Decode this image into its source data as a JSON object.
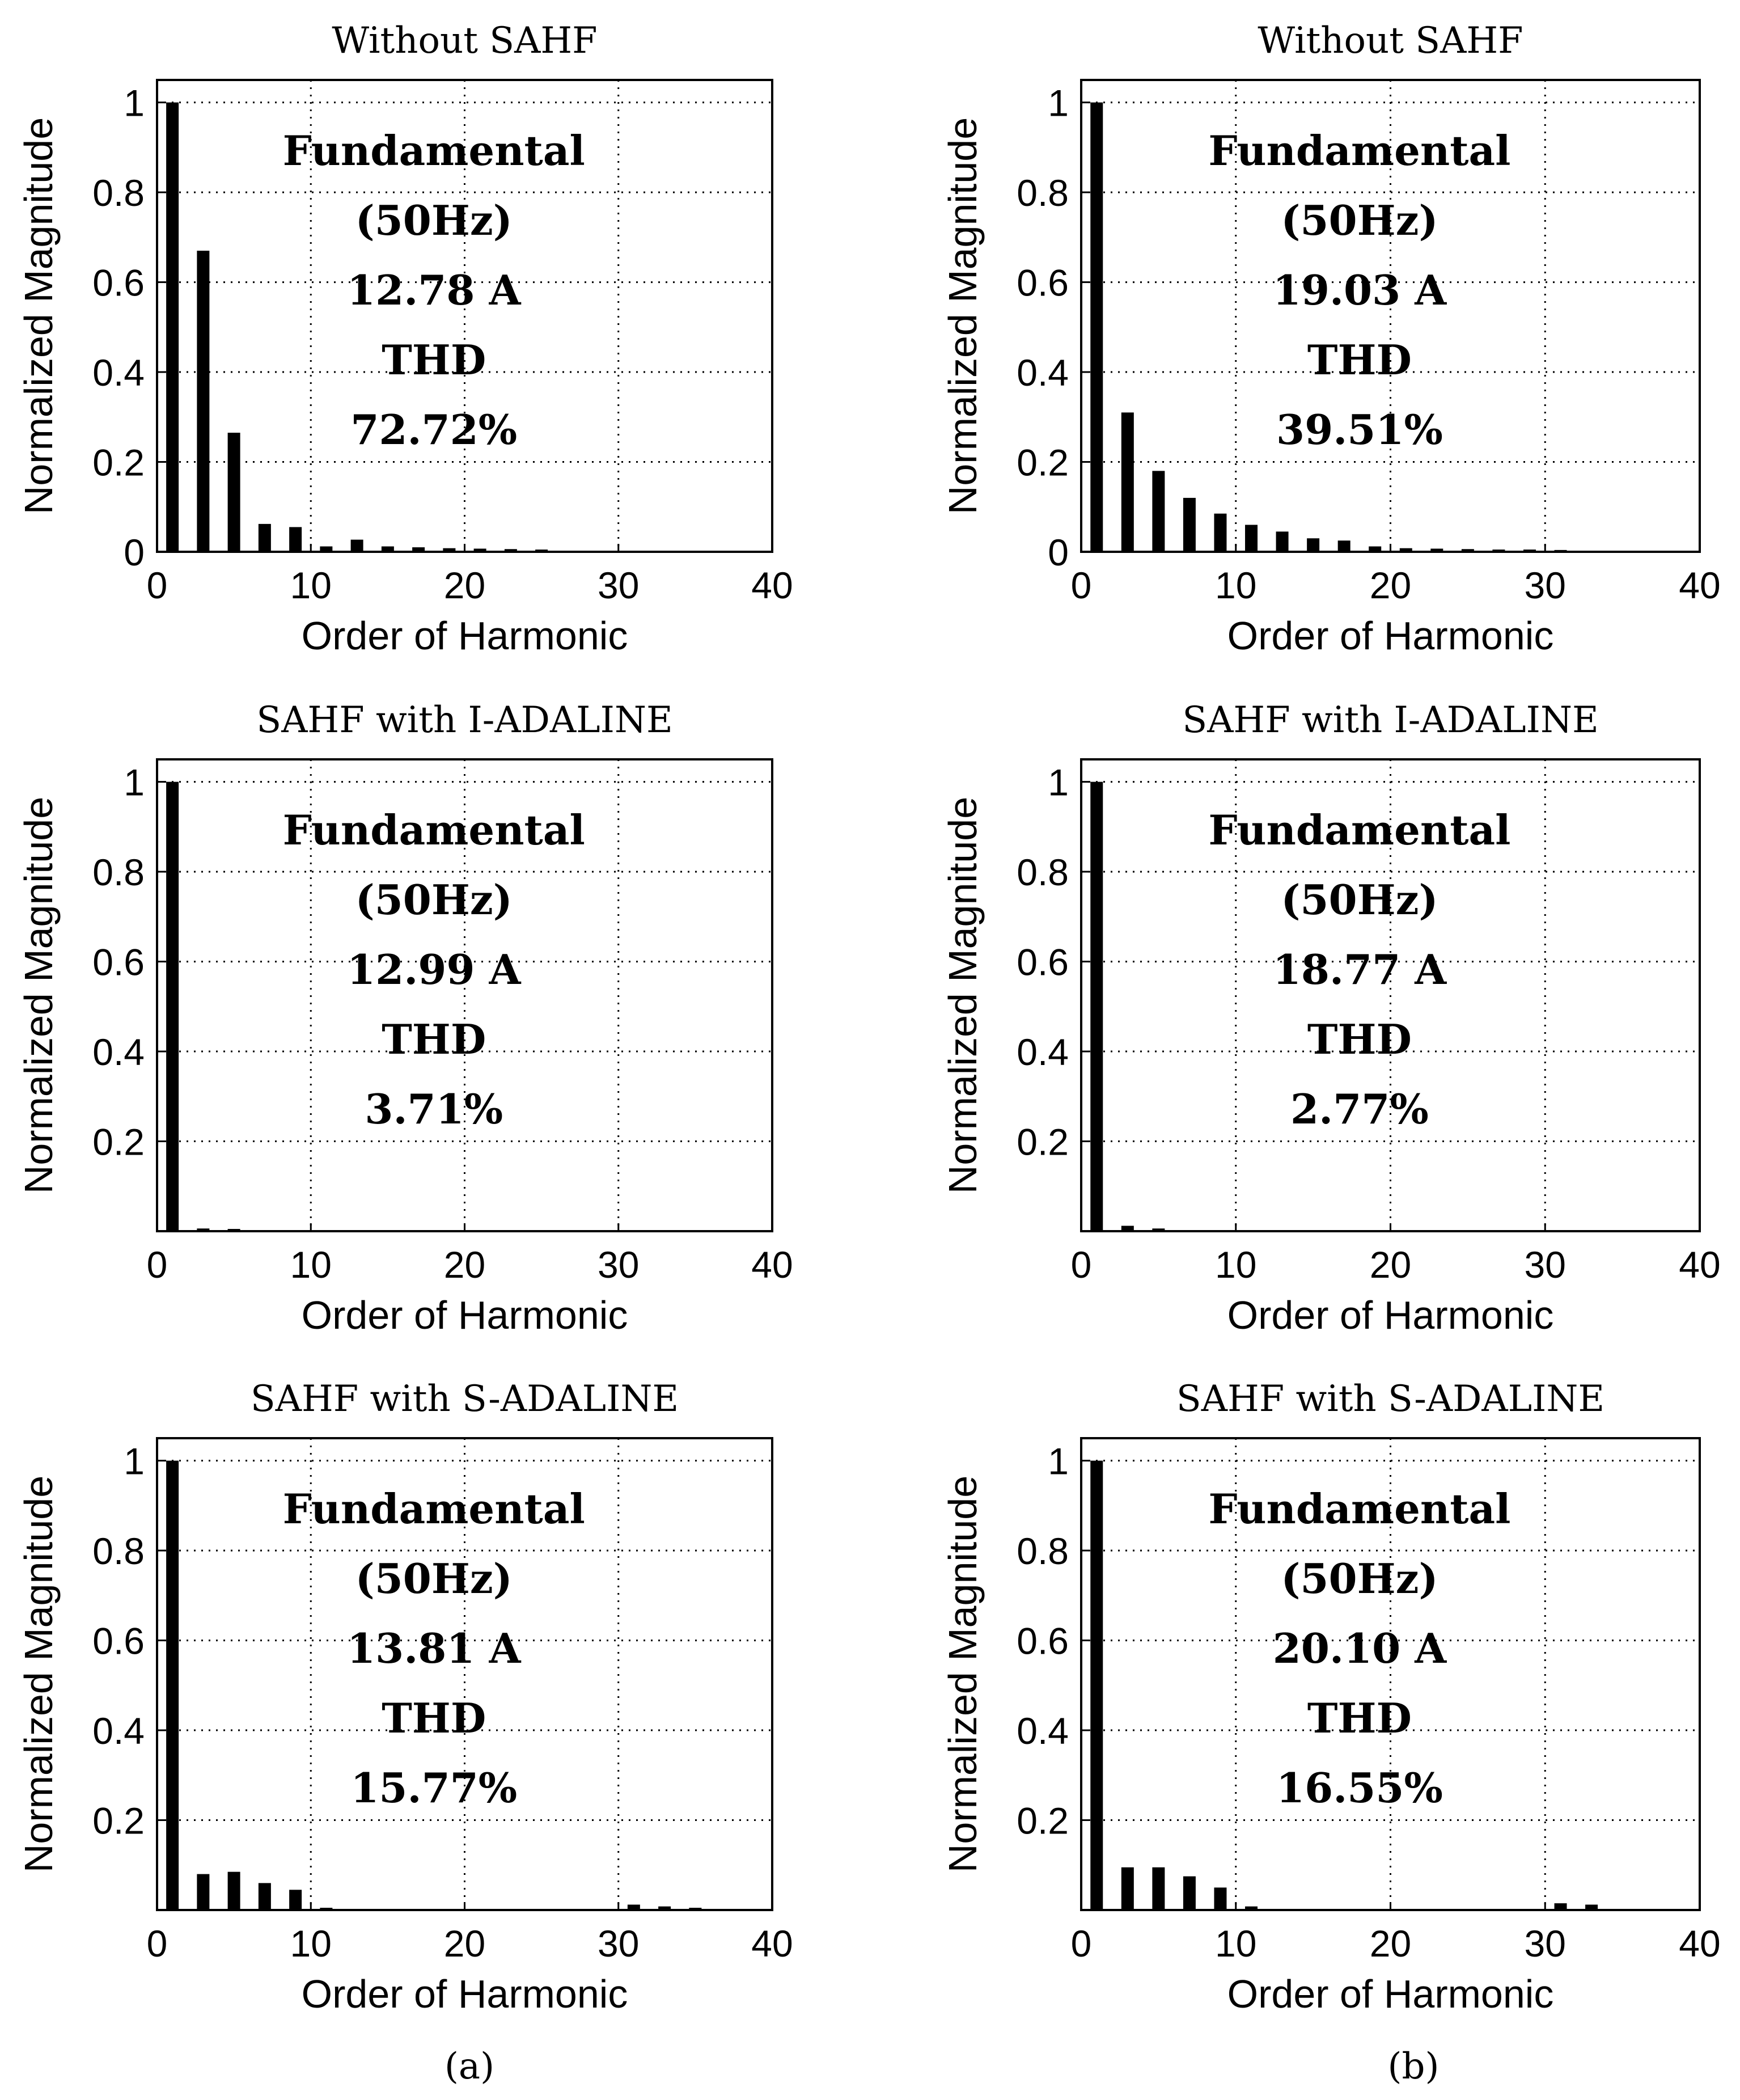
{
  "chart_data": [
    {
      "type": "bar",
      "panel": "a",
      "row": 0,
      "title": "Without SAHF",
      "xlabel": "Order of Harmonic",
      "ylabel": "Normalized Magnitude",
      "xlim": [
        0,
        40
      ],
      "ylim": [
        0,
        1.05
      ],
      "xticks": [
        "0",
        "10",
        "20",
        "30",
        "40"
      ],
      "yticks": [
        "0",
        "0.2",
        "0.4",
        "0.6",
        "0.8",
        "1"
      ],
      "x": [
        1,
        3,
        5,
        7,
        9,
        11,
        13,
        15,
        17,
        19,
        21,
        23,
        25
      ],
      "values": [
        1.0,
        0.67,
        0.265,
        0.062,
        0.055,
        0.012,
        0.027,
        0.012,
        0.01,
        0.008,
        0.007,
        0.006,
        0.005
      ],
      "annotation": [
        "Fundamental",
        "(50Hz)",
        "12.78 A",
        "THD",
        "72.72%"
      ]
    },
    {
      "type": "bar",
      "panel": "b",
      "row": 0,
      "title": "Without SAHF",
      "xlabel": "Order of Harmonic",
      "ylabel": "Normalized Magnitude",
      "xlim": [
        0,
        40
      ],
      "ylim": [
        0,
        1.05
      ],
      "xticks": [
        "0",
        "10",
        "20",
        "30",
        "40"
      ],
      "yticks": [
        "0",
        "0.2",
        "0.4",
        "0.6",
        "0.8",
        "1"
      ],
      "x": [
        1,
        3,
        5,
        7,
        9,
        11,
        13,
        15,
        17,
        19,
        21,
        23,
        25,
        27,
        29,
        31
      ],
      "values": [
        1.0,
        0.31,
        0.18,
        0.12,
        0.085,
        0.06,
        0.045,
        0.03,
        0.025,
        0.012,
        0.008,
        0.007,
        0.006,
        0.005,
        0.005,
        0.004
      ],
      "annotation": [
        "Fundamental",
        "(50Hz)",
        "19.03 A",
        "THD",
        "39.51%"
      ]
    },
    {
      "type": "bar",
      "panel": "a",
      "row": 1,
      "title": "SAHF with I-ADALINE",
      "xlabel": "Order of Harmonic",
      "ylabel": "Normalized Magnitude",
      "xlim": [
        0,
        40
      ],
      "ylim": [
        0,
        1.05
      ],
      "xticks": [
        "0",
        "10",
        "20",
        "30",
        "40"
      ],
      "yticks": [
        "0.2",
        "0.4",
        "0.6",
        "0.8",
        "1"
      ],
      "x": [
        1,
        3,
        5
      ],
      "values": [
        1.0,
        0.006,
        0.005
      ],
      "annotation": [
        "Fundamental",
        "(50Hz)",
        "12.99 A",
        "THD",
        "3.71%"
      ]
    },
    {
      "type": "bar",
      "panel": "b",
      "row": 1,
      "title": "SAHF with I-ADALINE",
      "xlabel": "Order of Harmonic",
      "ylabel": "Normalized Magnitude",
      "xlim": [
        0,
        40
      ],
      "ylim": [
        0,
        1.05
      ],
      "xticks": [
        "0",
        "10",
        "20",
        "30",
        "40"
      ],
      "yticks": [
        "0.2",
        "0.4",
        "0.6",
        "0.8",
        "1"
      ],
      "x": [
        1,
        3,
        5
      ],
      "values": [
        1.0,
        0.012,
        0.006
      ],
      "annotation": [
        "Fundamental",
        "(50Hz)",
        "18.77 A",
        "THD",
        "2.77%"
      ]
    },
    {
      "type": "bar",
      "panel": "a",
      "row": 2,
      "title": "SAHF with S-ADALINE",
      "xlabel": "Order of Harmonic",
      "ylabel": "Normalized Magnitude",
      "xlim": [
        0,
        40
      ],
      "ylim": [
        0,
        1.05
      ],
      "xticks": [
        "0",
        "10",
        "20",
        "30",
        "40"
      ],
      "yticks": [
        "0.2",
        "0.4",
        "0.6",
        "0.8",
        "1"
      ],
      "x": [
        1,
        3,
        5,
        7,
        9,
        11,
        31,
        33,
        35
      ],
      "values": [
        1.0,
        0.08,
        0.085,
        0.06,
        0.045,
        0.005,
        0.012,
        0.008,
        0.005
      ],
      "annotation": [
        "Fundamental",
        "(50Hz)",
        "13.81 A",
        "THD",
        "15.77%"
      ]
    },
    {
      "type": "bar",
      "panel": "b",
      "row": 2,
      "title": "SAHF with S-ADALINE",
      "xlabel": "Order of Harmonic",
      "ylabel": "Normalized Magnitude",
      "xlim": [
        0,
        40
      ],
      "ylim": [
        0,
        1.05
      ],
      "xticks": [
        "0",
        "10",
        "20",
        "30",
        "40"
      ],
      "yticks": [
        "0.2",
        "0.4",
        "0.6",
        "0.8",
        "1"
      ],
      "x": [
        1,
        3,
        5,
        7,
        9,
        11,
        31,
        33
      ],
      "values": [
        1.0,
        0.095,
        0.095,
        0.075,
        0.05,
        0.008,
        0.015,
        0.012
      ],
      "annotation": [
        "Fundamental",
        "(50Hz)",
        "20.10 A",
        "THD",
        "16.55%"
      ]
    }
  ],
  "captions": {
    "a": "(a)",
    "b": "(b)"
  }
}
